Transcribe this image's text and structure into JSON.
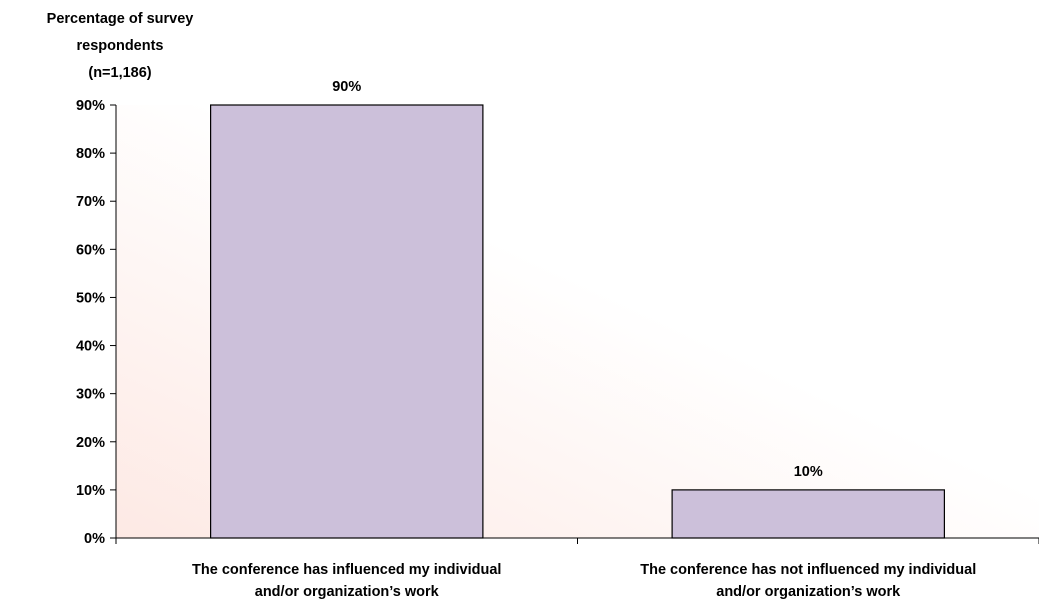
{
  "chart_data": {
    "type": "bar",
    "ylabel_lines": [
      "Percentage of survey",
      "respondents",
      "(n=1,186)"
    ],
    "categories": [
      [
        "The conference has influenced my individual",
        "and/or organization’s work"
      ],
      [
        "The conference has not influenced my individual",
        "and/or organization’s work"
      ]
    ],
    "values": [
      90,
      10
    ],
    "data_labels": [
      "90%",
      "10%"
    ],
    "ylim": [
      0,
      90
    ],
    "yticks": [
      0,
      10,
      20,
      30,
      40,
      50,
      60,
      70,
      80,
      90
    ],
    "ytick_labels": [
      "0%",
      "10%",
      "20%",
      "30%",
      "40%",
      "50%",
      "60%",
      "70%",
      "80%",
      "90%"
    ],
    "grid": false,
    "colors": {
      "bar": "#CCC0DA",
      "bar_stroke": "#000000",
      "plot_gradient_start": "#FDE9E4",
      "plot_gradient_end": "#FFFFFF"
    }
  }
}
